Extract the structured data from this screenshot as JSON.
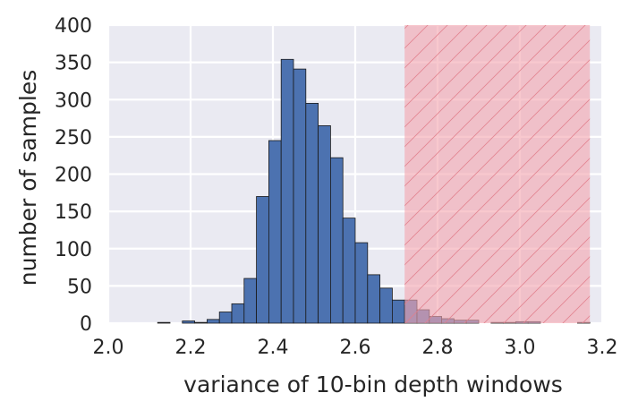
{
  "chart_data": {
    "type": "bar",
    "subtype": "histogram",
    "title": "",
    "xlabel": "variance of 10-bin depth windows",
    "ylabel": "number of samples",
    "xlim": [
      2.0,
      3.2
    ],
    "ylim": [
      0,
      400
    ],
    "xticks": [
      "2.0",
      "2.2",
      "2.4",
      "2.6",
      "2.8",
      "3.0",
      "3.2"
    ],
    "yticks": [
      "0",
      "50",
      "100",
      "150",
      "200",
      "250",
      "300",
      "350",
      "400"
    ],
    "grid": true,
    "bin_width": 0.03,
    "bins": [
      {
        "x0": 2.12,
        "x1": 2.15,
        "count": 1
      },
      {
        "x0": 2.18,
        "x1": 2.21,
        "count": 3
      },
      {
        "x0": 2.21,
        "x1": 2.24,
        "count": 1
      },
      {
        "x0": 2.24,
        "x1": 2.27,
        "count": 5
      },
      {
        "x0": 2.27,
        "x1": 2.3,
        "count": 15
      },
      {
        "x0": 2.3,
        "x1": 2.33,
        "count": 26
      },
      {
        "x0": 2.33,
        "x1": 2.36,
        "count": 60
      },
      {
        "x0": 2.36,
        "x1": 2.39,
        "count": 170
      },
      {
        "x0": 2.39,
        "x1": 2.42,
        "count": 245
      },
      {
        "x0": 2.42,
        "x1": 2.45,
        "count": 354
      },
      {
        "x0": 2.45,
        "x1": 2.48,
        "count": 341
      },
      {
        "x0": 2.48,
        "x1": 2.51,
        "count": 295
      },
      {
        "x0": 2.51,
        "x1": 2.54,
        "count": 265
      },
      {
        "x0": 2.54,
        "x1": 2.57,
        "count": 222
      },
      {
        "x0": 2.57,
        "x1": 2.6,
        "count": 141
      },
      {
        "x0": 2.6,
        "x1": 2.63,
        "count": 108
      },
      {
        "x0": 2.63,
        "x1": 2.66,
        "count": 65
      },
      {
        "x0": 2.66,
        "x1": 2.69,
        "count": 47
      },
      {
        "x0": 2.69,
        "x1": 2.72,
        "count": 31
      },
      {
        "x0": 2.72,
        "x1": 2.75,
        "count": 31
      },
      {
        "x0": 2.75,
        "x1": 2.78,
        "count": 18
      },
      {
        "x0": 2.78,
        "x1": 2.81,
        "count": 9
      },
      {
        "x0": 2.81,
        "x1": 2.84,
        "count": 6
      },
      {
        "x0": 2.84,
        "x1": 2.87,
        "count": 4
      },
      {
        "x0": 2.87,
        "x1": 2.9,
        "count": 4
      },
      {
        "x0": 2.93,
        "x1": 2.96,
        "count": 1
      },
      {
        "x0": 2.96,
        "x1": 2.99,
        "count": 1
      },
      {
        "x0": 2.99,
        "x1": 3.02,
        "count": 2
      },
      {
        "x0": 3.02,
        "x1": 3.05,
        "count": 2
      },
      {
        "x0": 3.14,
        "x1": 3.17,
        "count": 1
      }
    ],
    "highlight_region": {
      "x0": 2.72,
      "x1": 3.17
    },
    "colors": {
      "bar": "#4c72b0",
      "background": "#eaeaf2",
      "highlight": "#f4a6b0",
      "hatch": "#e0808c"
    }
  }
}
